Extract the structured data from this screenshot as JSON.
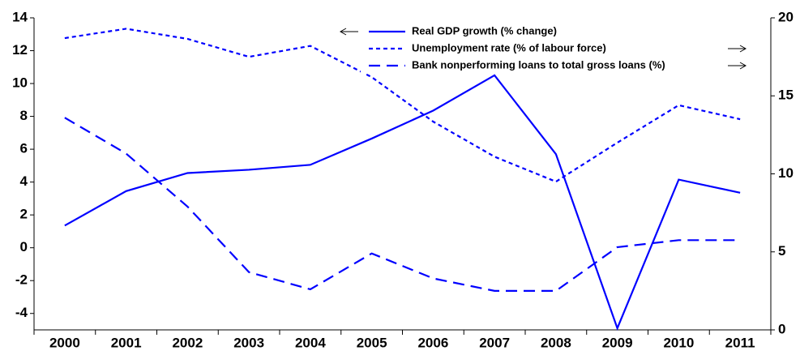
{
  "chart_data": {
    "type": "line",
    "categories": [
      "2000",
      "2001",
      "2002",
      "2003",
      "2004",
      "2005",
      "2006",
      "2007",
      "2008",
      "2009",
      "2010",
      "2011"
    ],
    "series": [
      {
        "name": "Real GDP growth (% change)",
        "color": "#0000ff",
        "dash": "solid",
        "axis": "y",
        "values": [
          1.35,
          3.45,
          4.55,
          4.75,
          5.05,
          6.65,
          8.35,
          10.5,
          5.7,
          -4.9,
          4.15,
          3.35
        ]
      },
      {
        "name": "Unemployment rate (% of labour force)",
        "color": "#0000ff",
        "dash": "dotted",
        "axis": "y2",
        "values": [
          18.7,
          19.3,
          18.65,
          17.5,
          18.2,
          16.2,
          13.35,
          11.1,
          9.5,
          12.0,
          14.4,
          13.5
        ]
      },
      {
        "name": "Bank nonperforming loans to total gross loans (%)",
        "color": "#0000ff",
        "dash": "dashed",
        "axis": "y2",
        "values": [
          13.6,
          11.3,
          7.9,
          3.7,
          2.6,
          4.9,
          3.3,
          2.5,
          2.5,
          5.3,
          5.75,
          5.75
        ]
      }
    ],
    "ylim": [
      -5,
      14
    ],
    "yticks": [
      -4,
      -2,
      0,
      2,
      4,
      6,
      8,
      10,
      12,
      14
    ],
    "y2lim": [
      0,
      20
    ],
    "y2ticks": [
      0,
      5,
      10,
      15,
      20
    ],
    "grid": false
  }
}
